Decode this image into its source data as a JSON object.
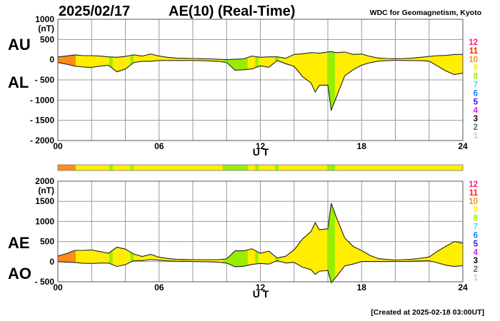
{
  "header": {
    "date": "2025/02/17",
    "index_title": "AE(10) (Real-Time)",
    "institution": "WDC for Geomagnetism, Kyoto"
  },
  "footer": {
    "created": "[Created at 2025-02-18 03:00UT]"
  },
  "legend_levels": [
    {
      "label": "12",
      "color": "#ff1a80"
    },
    {
      "label": "11",
      "color": "#ff2200"
    },
    {
      "label": "10",
      "color": "#ff8c1a"
    },
    {
      "label": "9",
      "color": "#ffee00"
    },
    {
      "label": "8",
      "color": "#99ee00"
    },
    {
      "label": "7",
      "color": "#33eedd"
    },
    {
      "label": "6",
      "color": "#1a80ff"
    },
    {
      "label": "5",
      "color": "#3311ee"
    },
    {
      "label": "4",
      "color": "#ee11ee"
    },
    {
      "label": "3",
      "color": "#000000"
    },
    {
      "label": "2",
      "color": "#666666"
    },
    {
      "label": "1",
      "color": "#cccccc"
    }
  ],
  "activity_bar": [
    {
      "from": 0,
      "to": 1.06,
      "level": "10"
    },
    {
      "from": 1.06,
      "to": 3.05,
      "level": "9"
    },
    {
      "from": 3.05,
      "to": 3.25,
      "level": "8"
    },
    {
      "from": 3.25,
      "to": 4.3,
      "level": "9"
    },
    {
      "from": 4.3,
      "to": 4.48,
      "level": "8"
    },
    {
      "from": 4.48,
      "to": 9.77,
      "level": "9"
    },
    {
      "from": 9.77,
      "to": 11.25,
      "level": "8"
    },
    {
      "from": 11.25,
      "to": 11.7,
      "level": "9"
    },
    {
      "from": 11.7,
      "to": 11.88,
      "level": "8"
    },
    {
      "from": 11.88,
      "to": 12.88,
      "level": "9"
    },
    {
      "from": 12.88,
      "to": 13.08,
      "level": "8"
    },
    {
      "from": 13.08,
      "to": 15.96,
      "level": "9"
    },
    {
      "from": 15.96,
      "to": 16.42,
      "level": "8"
    },
    {
      "from": 16.42,
      "to": 24,
      "level": "9"
    }
  ],
  "chart_data": [
    {
      "type": "area",
      "title": "AU / AL",
      "series_labels": [
        "AU",
        "AL"
      ],
      "ylabel": "(nT)",
      "xlabel": "U T",
      "ylim": [
        -2000,
        1000
      ],
      "xlim": [
        0,
        24
      ],
      "grid": true,
      "yticks": [
        1000,
        500,
        0,
        -500,
        -1000,
        -1500,
        -2000
      ],
      "ytick_labels": [
        "1000",
        "500",
        "0",
        "- 500",
        "- 1000",
        "- 1500",
        "- 2000"
      ],
      "xticks": [
        0,
        6,
        12,
        18,
        24
      ],
      "xtick_labels": [
        "00",
        "06",
        "12",
        "18",
        "24"
      ],
      "x": [
        0,
        0.5,
        1,
        1.5,
        2,
        2.5,
        3,
        3.5,
        4,
        4.5,
        5,
        5.5,
        6,
        6.5,
        7,
        7.5,
        8,
        8.5,
        9,
        9.5,
        10,
        10.5,
        11,
        11.5,
        12,
        12.5,
        13,
        13.5,
        14,
        14.5,
        15,
        15.25,
        15.5,
        16,
        16.2,
        16.5,
        17,
        17.5,
        18,
        18.5,
        19,
        19.5,
        20,
        20.5,
        21,
        21.5,
        22,
        22.5,
        23,
        23.5,
        24
      ],
      "series": [
        {
          "name": "AU",
          "values": [
            70,
            90,
            120,
            100,
            100,
            90,
            70,
            60,
            80,
            120,
            90,
            140,
            90,
            60,
            40,
            35,
            30,
            25,
            20,
            10,
            0,
            10,
            20,
            90,
            60,
            70,
            70,
            35,
            130,
            145,
            175,
            170,
            160,
            190,
            200,
            175,
            190,
            130,
            140,
            80,
            40,
            30,
            25,
            30,
            40,
            60,
            80,
            100,
            105,
            130,
            130
          ]
        },
        {
          "name": "AL",
          "values": [
            -70,
            -110,
            -160,
            -180,
            -190,
            -160,
            -140,
            -300,
            -230,
            -70,
            -40,
            -40,
            -20,
            -20,
            -20,
            -20,
            -20,
            -25,
            -30,
            -40,
            -70,
            -260,
            -250,
            -230,
            -150,
            -190,
            -20,
            -100,
            -165,
            -420,
            -575,
            -800,
            -630,
            -630,
            -1250,
            -930,
            -400,
            -250,
            -135,
            -75,
            -35,
            -25,
            -15,
            -20,
            -20,
            -25,
            -35,
            -160,
            -280,
            -370,
            -330
          ]
        }
      ]
    },
    {
      "type": "area",
      "title": "AE / AO",
      "series_labels": [
        "AE",
        "AO"
      ],
      "ylabel": "(nT)",
      "xlabel": "U T",
      "ylim": [
        -500,
        2000
      ],
      "xlim": [
        0,
        24
      ],
      "grid": true,
      "yticks": [
        2000,
        1500,
        1000,
        500,
        0,
        -500
      ],
      "ytick_labels": [
        "2000",
        "1500",
        "1000",
        "500",
        "0",
        "- 500"
      ],
      "xticks": [
        0,
        6,
        12,
        18,
        24
      ],
      "xtick_labels": [
        "00",
        "06",
        "12",
        "18",
        "24"
      ],
      "x": [
        0,
        0.5,
        1,
        1.5,
        2,
        2.5,
        3,
        3.5,
        4,
        4.5,
        5,
        5.5,
        6,
        6.5,
        7,
        7.5,
        8,
        8.5,
        9,
        9.5,
        10,
        10.5,
        11,
        11.5,
        12,
        12.5,
        13,
        13.5,
        14,
        14.5,
        15,
        15.25,
        15.5,
        16,
        16.2,
        16.5,
        17,
        17.5,
        18,
        18.5,
        19,
        19.5,
        20,
        20.5,
        21,
        21.5,
        22,
        22.5,
        23,
        23.5,
        24
      ],
      "series": [
        {
          "name": "AE",
          "values": [
            140,
            200,
            280,
            280,
            290,
            250,
            210,
            360,
            310,
            190,
            130,
            180,
            110,
            80,
            60,
            55,
            50,
            50,
            50,
            50,
            70,
            270,
            270,
            320,
            210,
            260,
            90,
            135,
            295,
            565,
            750,
            970,
            790,
            820,
            1450,
            1105,
            590,
            380,
            275,
            155,
            75,
            55,
            40,
            50,
            60,
            85,
            115,
            260,
            385,
            500,
            460
          ]
        },
        {
          "name": "AO",
          "values": [
            0,
            -10,
            -20,
            -40,
            -45,
            -35,
            -35,
            -120,
            -75,
            25,
            25,
            50,
            35,
            20,
            10,
            8,
            5,
            0,
            -5,
            -15,
            -35,
            -125,
            -115,
            -70,
            -45,
            -60,
            25,
            -33,
            -18,
            -138,
            -200,
            -315,
            -235,
            -220,
            -525,
            -378,
            -105,
            -60,
            3,
            3,
            3,
            3,
            5,
            5,
            10,
            18,
            23,
            -30,
            -88,
            -120,
            -100
          ]
        }
      ]
    }
  ]
}
